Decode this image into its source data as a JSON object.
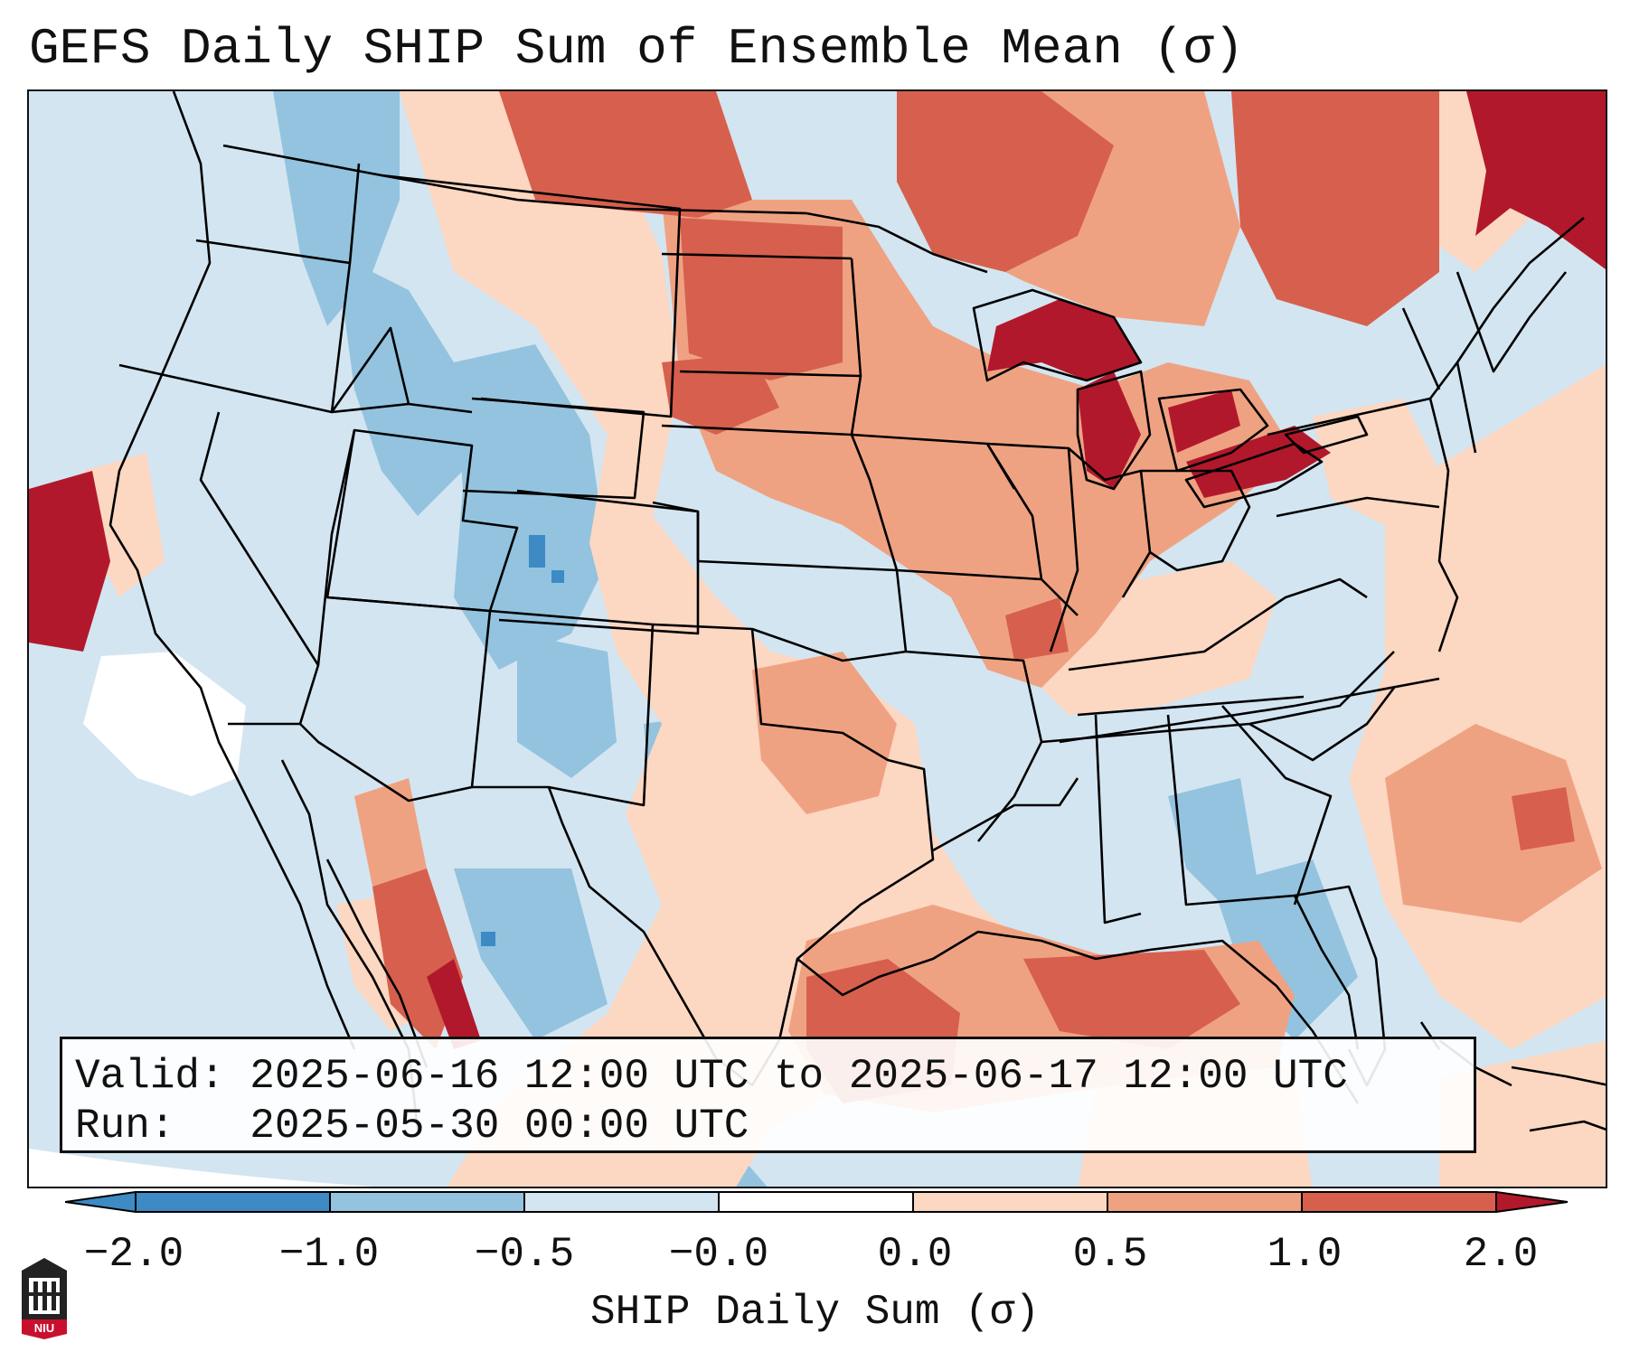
{
  "title": "GEFS Daily SHIP Sum of Ensemble Mean (σ)",
  "info": {
    "valid_label": "Valid:",
    "valid_value": "2025-06-16 12:00 UTC to 2025-06-17 12:00 UTC",
    "run_label": "Run:",
    "run_value": "2025-05-30 00:00 UTC"
  },
  "colorbar": {
    "label": "SHIP Daily Sum (σ)",
    "ticks": [
      "−2.0",
      "−1.0",
      "−0.5",
      "−0.0",
      "0.0",
      "0.5",
      "1.0",
      "2.0"
    ],
    "colors": [
      "#3d8ac4",
      "#93c3df",
      "#d3e5f0",
      "#ffffff",
      "#fcd7c2",
      "#efa282",
      "#d6604d",
      "#b2182b"
    ]
  },
  "logo": {
    "text": "NIU"
  },
  "map": {
    "region": "Contiguous United States",
    "field": "SHIP daily sum anomaly (σ)"
  }
}
